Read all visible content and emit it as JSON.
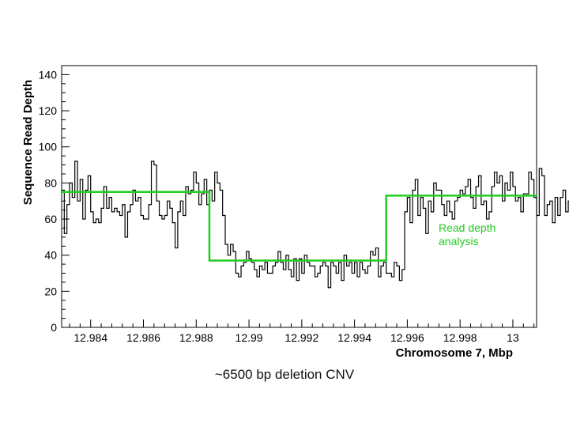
{
  "caption": "~6500 bp deletion CNV",
  "chart_data": {
    "type": "line",
    "xlabel": "Chromosome 7, Mbp",
    "ylabel": "Sequence Read Depth",
    "xlim": [
      12.9829,
      13.0009
    ],
    "ylim": [
      0,
      145
    ],
    "x_ticks": [
      12.984,
      12.986,
      12.988,
      12.99,
      12.992,
      12.994,
      12.996,
      12.998,
      13
    ],
    "x_tick_labels": [
      "12.984",
      "12.986",
      "12.988",
      "12.99",
      "12.992",
      "12.994",
      "12.996",
      "12.998",
      "13"
    ],
    "y_ticks": [
      0,
      20,
      40,
      60,
      80,
      100,
      120,
      140
    ],
    "y_tick_labels": [
      "0",
      "20",
      "40",
      "60",
      "80",
      "100",
      "120",
      "140"
    ],
    "grid": false,
    "annotation": {
      "text_lines": [
        "Read depth",
        "analysis"
      ],
      "color": "#22cc22"
    },
    "series": [
      {
        "style": "step",
        "color": "#000000",
        "x_start": 12.9829,
        "bin_width": 0.0001,
        "values": [
          76,
          52,
          68,
          80,
          72,
          92,
          70,
          82,
          60,
          76,
          84,
          64,
          58,
          60,
          58,
          66,
          78,
          66,
          72,
          64,
          66,
          64,
          62,
          68,
          50,
          64,
          68,
          76,
          70,
          72,
          62,
          60,
          60,
          68,
          92,
          90,
          70,
          62,
          60,
          62,
          70,
          66,
          58,
          44,
          64,
          70,
          62,
          78,
          74,
          76,
          86,
          80,
          68,
          74,
          82,
          68,
          76,
          70,
          86,
          80,
          76,
          62,
          46,
          40,
          46,
          42,
          30,
          28,
          34,
          36,
          42,
          38,
          36,
          32,
          28,
          34,
          32,
          36,
          30,
          30,
          34,
          36,
          42,
          36,
          32,
          40,
          32,
          28,
          38,
          26,
          38,
          30,
          40,
          36,
          34,
          34,
          28,
          30,
          34,
          36,
          34,
          22,
          36,
          34,
          30,
          36,
          26,
          40,
          34,
          36,
          30,
          36,
          28,
          36,
          32,
          30,
          34,
          42,
          40,
          44,
          28,
          34,
          36,
          30,
          30,
          28,
          36,
          34,
          26,
          32,
          64,
          72,
          58,
          76,
          82,
          62,
          72,
          66,
          52,
          70,
          64,
          80,
          76,
          76,
          68,
          62,
          70,
          64,
          60,
          70,
          72,
          76,
          74,
          78,
          82,
          72,
          66,
          78,
          84,
          68,
          70,
          60,
          64,
          78,
          86,
          80,
          84,
          70,
          80,
          76,
          86,
          78,
          70,
          72,
          64,
          74,
          74,
          86,
          82,
          72,
          62,
          88,
          84,
          62,
          68,
          70,
          58,
          72,
          62,
          72,
          76,
          64,
          70,
          62,
          72,
          68
        ]
      },
      {
        "style": "fit",
        "color": "#22cc22",
        "x": [
          12.9829,
          12.9885,
          12.9885,
          12.9952,
          12.9952,
          13.0009
        ],
        "y": [
          75,
          75,
          37,
          37,
          73,
          73
        ]
      }
    ]
  }
}
